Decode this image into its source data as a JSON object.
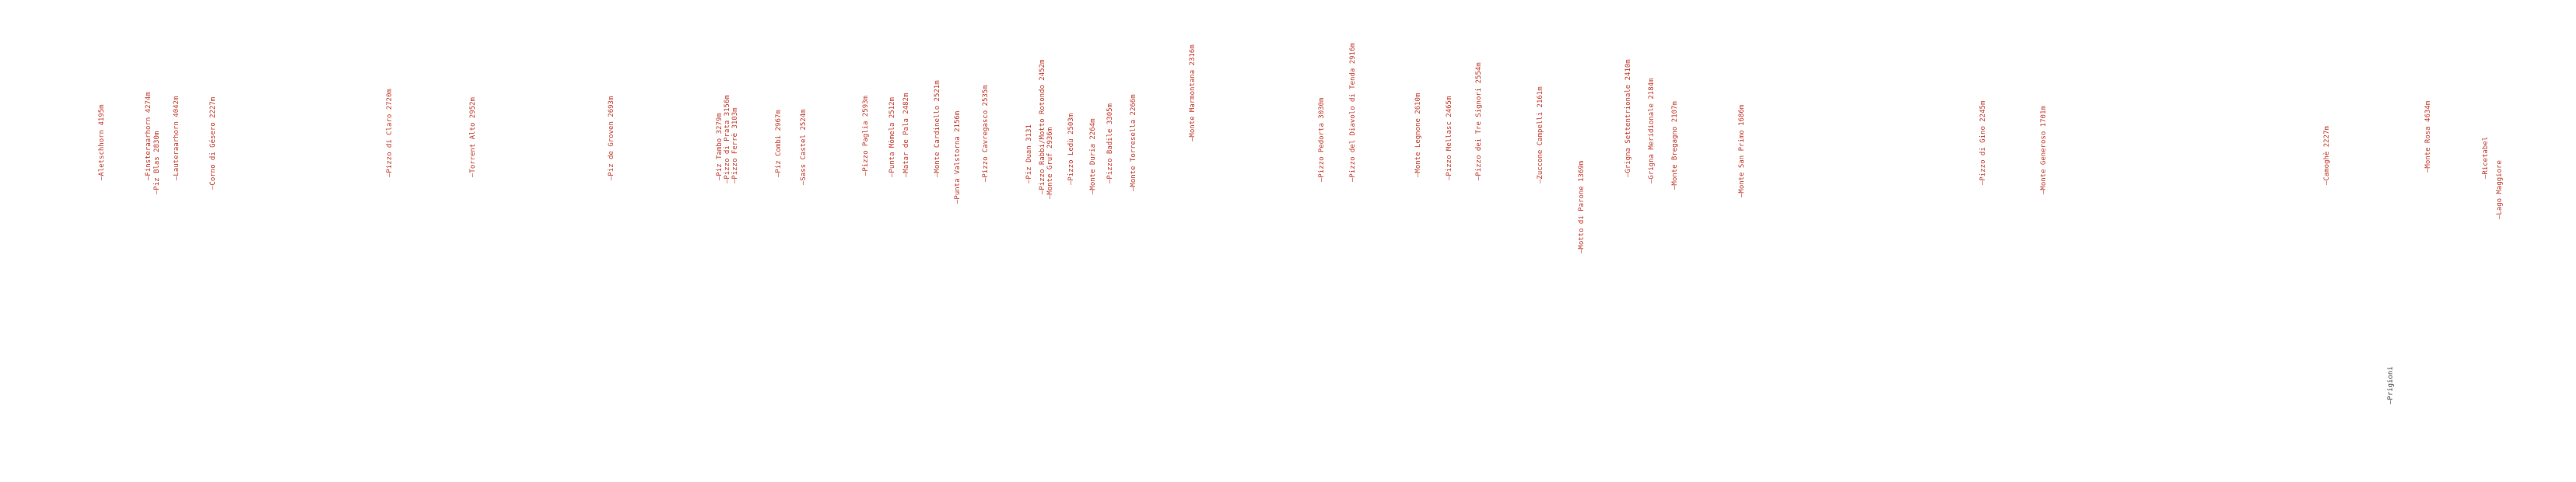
{
  "peaks": [
    {
      "label": "—Aletschhorn 4195m"
    },
    {
      "label": "—Finsteraarhorn 4274m"
    },
    {
      "label": "—Piz Blas 2830m"
    },
    {
      "label": "—Lauteraarhorn 4042m"
    },
    {
      "label": "—Corno di Gésero 2227m"
    },
    {
      "label": "—Pizzo di Claro 2720m"
    },
    {
      "label": "—Torrent Alto 2952m"
    },
    {
      "label": "—Piz de Groven 2693m"
    },
    {
      "label": "—Piz Tambo 3279m"
    },
    {
      "label": "—Pizzo di Prata 3156m"
    },
    {
      "label": "—Pizzo Ferrè 3103m"
    },
    {
      "label": "—Piz Combi 2967m"
    },
    {
      "label": "—Sass Castel 2524m"
    },
    {
      "label": "—Pizzo Paglia 2593m"
    },
    {
      "label": "—Punta Mòmela 2512m"
    },
    {
      "label": "—Matar de Pala 2482m"
    },
    {
      "label": "—Monte Cardinello 2521m"
    },
    {
      "label": "—Punta Valstorna 2156m"
    },
    {
      "label": "—Pizzo Cavregasco 2535m"
    },
    {
      "label": "—Piz Duan 3131"
    },
    {
      "label": "—Pizzo Rabbi/Motto Rotondo 2452m"
    },
    {
      "label": "—Monte Gruf 2936m"
    },
    {
      "label": "—Pizzo Ledù 2503m"
    },
    {
      "label": "—Monte Duria 2264m"
    },
    {
      "label": "—Pizzo Badile 3305m"
    },
    {
      "label": "—Monte Torresella 2266m"
    },
    {
      "label": "—Monte Marmontana 2316m"
    },
    {
      "label": "—Pizzo Pedorta 3030m"
    },
    {
      "label": "—Pizzo del Diavolo di Tenda 2916m"
    },
    {
      "label": "—Monte Legnone 2610m"
    },
    {
      "label": "—Pizzo Mellasc 2465m"
    },
    {
      "label": "—Pizzo dei Tre Signori 2554m"
    },
    {
      "label": "—Zuccone Campelli 2161m"
    },
    {
      "label": "—Motto di Parone 1369m"
    },
    {
      "label": "—Grigna Settentrionale 2410m"
    },
    {
      "label": "—Grigna Meridionale 2184m"
    },
    {
      "label": "—Monte Bregagno 2107m"
    },
    {
      "label": "—Monte San Primo 1686m"
    },
    {
      "label": "—Pizzo di Gino 2245m"
    },
    {
      "label": "—Monte Generoso 1701m"
    },
    {
      "label": "—Camoghè 2227m"
    },
    {
      "label": "—Prigioni"
    },
    {
      "label": "—Monte Rosa 4634m"
    },
    {
      "label": "—Ricetabel"
    },
    {
      "label": "—Lago Maggiore"
    }
  ]
}
